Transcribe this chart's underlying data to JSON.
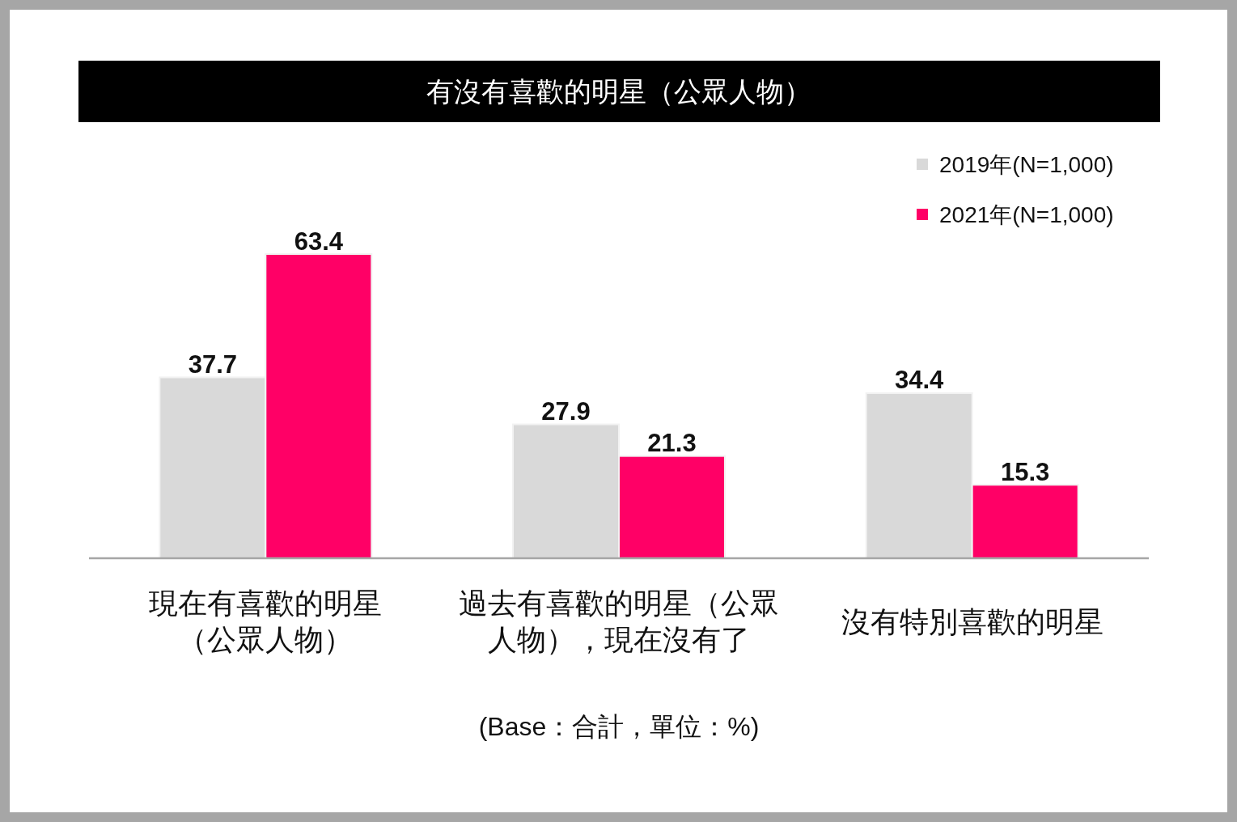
{
  "chart_data": {
    "type": "bar",
    "title": "有沒有喜歡的明星（公眾人物）",
    "categories": [
      "現在有喜歡的明星（公眾人物）",
      "過去有喜歡的明星（公眾人物），現在沒有了",
      "沒有特別喜歡的明星"
    ],
    "series": [
      {
        "name": "2019年(N=1,000)",
        "color": "#d9d9d9",
        "values": [
          37.7,
          27.9,
          34.4
        ]
      },
      {
        "name": "2021年(N=1,000)",
        "color": "#ff0066",
        "values": [
          63.4,
          21.3,
          15.3
        ]
      }
    ],
    "data_labels": true,
    "legend": "top right",
    "annotations": [
      "(Base：合計，單位：%)"
    ]
  }
}
